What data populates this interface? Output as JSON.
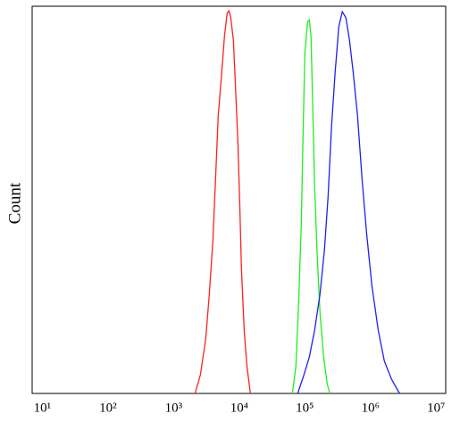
{
  "chart_data": {
    "type": "line",
    "y_label": "Count",
    "xscale": "log",
    "xlim": [
      7,
      14000000
    ],
    "ylim": [
      0,
      100
    ],
    "xticks": [
      {
        "value": 10,
        "label": "10¹"
      },
      {
        "value": 100,
        "label": "10²"
      },
      {
        "value": 1000,
        "label": "10³"
      },
      {
        "value": 10000,
        "label": "10⁴"
      },
      {
        "value": 100000,
        "label": "10⁵"
      },
      {
        "value": 1000000,
        "label": "10⁶"
      },
      {
        "value": 10000000,
        "label": "10⁷"
      }
    ],
    "series": [
      {
        "color": "#ff2020",
        "x": [
          2123,
          2560,
          3090,
          3500,
          3970,
          4360,
          4790,
          5430,
          5970,
          6550,
          6980,
          7430,
          8160,
          8690,
          9550,
          10200,
          10800,
          11900,
          13100,
          14800
        ],
        "values": [
          0,
          4.8,
          14.1,
          25.6,
          39.4,
          55.5,
          71.7,
          83.2,
          92.4,
          98.2,
          98.8,
          97.0,
          91.2,
          80.9,
          64.7,
          48.6,
          32.5,
          16.4,
          7.1,
          0
        ]
      },
      {
        "color": "#20ee20",
        "x": [
          64600,
          73100,
          80400,
          88300,
          94000,
          100000,
          110000,
          117000,
          124000,
          132000,
          141000,
          155000,
          170000,
          193000,
          219000,
          240000
        ],
        "values": [
          0,
          7.1,
          23.3,
          44.0,
          67.1,
          87.8,
          95.9,
          96.5,
          92.4,
          73.9,
          53.2,
          34.8,
          21.0,
          9.4,
          2.5,
          0
        ]
      },
      {
        "color": "#2020ee",
        "x": [
          77800,
          96800,
          117000,
          141000,
          170000,
          199000,
          226000,
          256000,
          290000,
          329000,
          372000,
          423000,
          479000,
          543000,
          635000,
          743000,
          869000,
          1050000,
          1310000,
          1630000,
          2090000,
          2770000
        ],
        "values": [
          0,
          4.8,
          9.4,
          16.4,
          25.6,
          37.1,
          50.9,
          69.4,
          83.2,
          94.7,
          98.6,
          97.0,
          91.2,
          83.2,
          71.7,
          55.5,
          41.7,
          27.9,
          16.4,
          8.3,
          3.7,
          0
        ]
      }
    ]
  }
}
